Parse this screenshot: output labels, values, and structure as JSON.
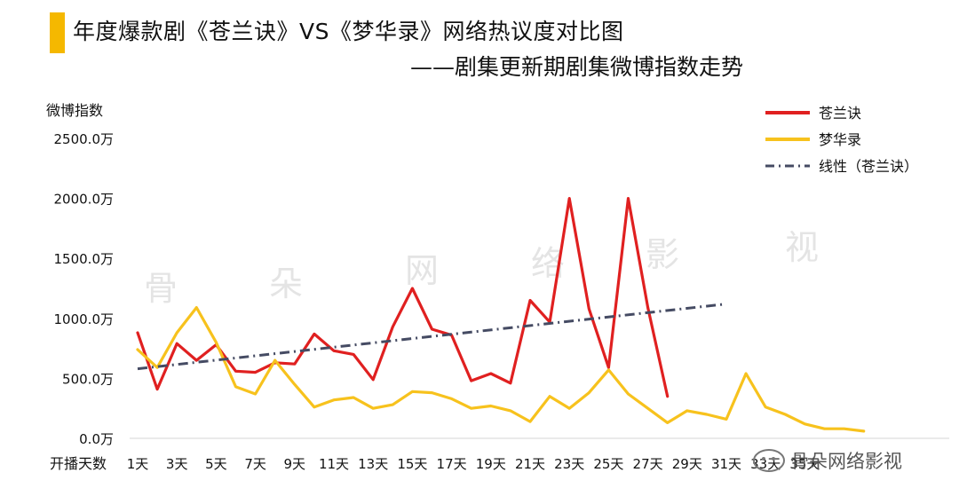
{
  "title": "年度爆款剧《苍兰诀》VS《梦华录》网络热议度对比图",
  "subtitle": "——剧集更新期剧集微博指数走势",
  "colors": {
    "title_bar": "#f5b800",
    "canglan": "#e02020",
    "menghua": "#f7c21d",
    "trend": "#454b63"
  },
  "watermark": {
    "chars": [
      "骨",
      "朵",
      "网",
      "络",
      "影",
      "视"
    ],
    "stamp": "骨朵网络影视"
  },
  "chart_data": {
    "type": "line",
    "ylabel": "微博指数",
    "xlabel": "开播天数",
    "ylim": [
      0,
      2500
    ],
    "yticks": [
      "0.0万",
      "500.0万",
      "1000.0万",
      "1500.0万",
      "2000.0万",
      "2500.0万"
    ],
    "xlim": [
      1,
      42
    ],
    "xticks": [
      "1天",
      "3天",
      "5天",
      "7天",
      "9天",
      "11天",
      "13天",
      "15天",
      "17天",
      "19天",
      "21天",
      "23天",
      "25天",
      "27天",
      "29天",
      "31天",
      "33天",
      "35天"
    ],
    "legend_position": "top-right",
    "series": [
      {
        "name": "苍兰诀",
        "color": "#e02020",
        "values": [
          880,
          410,
          790,
          650,
          780,
          560,
          550,
          630,
          620,
          870,
          730,
          700,
          490,
          930,
          1250,
          910,
          860,
          480,
          540,
          460,
          1150,
          970,
          2000,
          1080,
          590,
          2000,
          1090,
          350
        ]
      },
      {
        "name": "梦华录",
        "color": "#f7c21d",
        "values": [
          740,
          590,
          880,
          1090,
          800,
          430,
          370,
          650,
          450,
          260,
          320,
          340,
          250,
          280,
          390,
          380,
          330,
          250,
          270,
          230,
          140,
          350,
          250,
          380,
          570,
          370,
          250,
          130,
          230,
          200,
          160,
          540,
          260,
          200,
          120,
          80,
          80,
          60
        ]
      },
      {
        "name": "线性（苍兰诀）",
        "color": "#454b63",
        "style": "dash-dot",
        "x": [
          1,
          31
        ],
        "values": [
          580,
          1120
        ]
      }
    ]
  }
}
